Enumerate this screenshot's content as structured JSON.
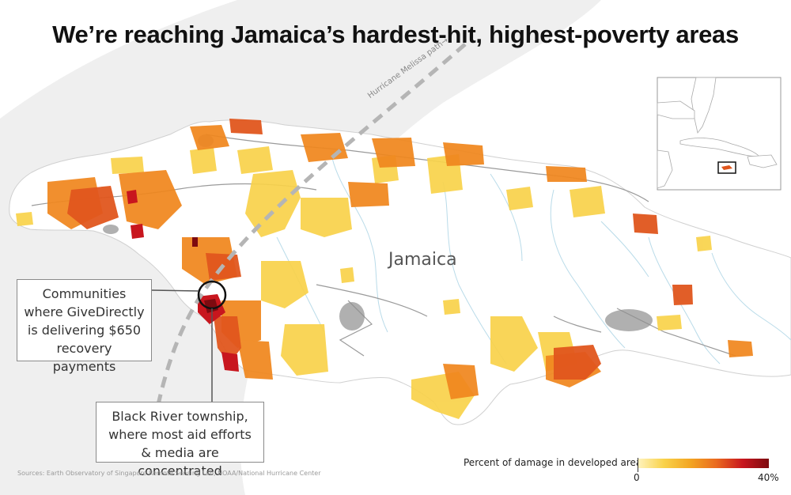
{
  "title": "We’re reaching Jamaica’s hardest-hit, highest-poverty areas",
  "map": {
    "island_label": "Jamaica",
    "hurricane_path_label": "Hurricane Melissa path→"
  },
  "callouts": {
    "givedirectly": "Communities where GiveDirectly is delivering $650 recovery payments",
    "black_river": "Black River township, where most aid efforts & media are concentrated"
  },
  "legend": {
    "title": "Percent of damage in developed areas:",
    "min_label": "0",
    "max_label": "40%",
    "min_value": 0,
    "max_value": 40
  },
  "sources": "Sources: Earth Observatory of Singapore Remote Sensing Lab, NOAA/National Hurricane Center",
  "colors": {
    "low_damage": "#f9d24a",
    "mid_damage": "#ea6a1f",
    "high_damage": "#c8161e",
    "highest_damage": "#7d0a0f",
    "island_fill": "#ffffff",
    "sea": "#ffffff",
    "hurricane_swath": "#eeeeee",
    "rivers": "#b9dbe9",
    "roads": "#8e8e8e"
  }
}
